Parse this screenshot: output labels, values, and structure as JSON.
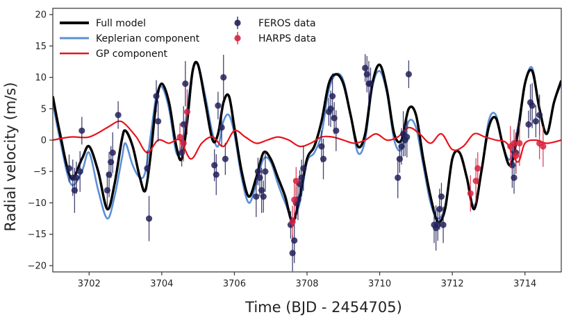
{
  "chart_data": {
    "type": "scatter",
    "xlabel": "Time (BJD - 2454705)",
    "ylabel": "Radial velocity (m/s)",
    "xlim": [
      3701,
      3715
    ],
    "ylim": [
      -21,
      21
    ],
    "xticks": [
      3702,
      3704,
      3706,
      3708,
      3710,
      3712,
      3714
    ],
    "yticks": [
      -20,
      -15,
      -10,
      -5,
      0,
      5,
      10,
      15,
      20
    ],
    "legend_position": "top-left",
    "colors": {
      "full_model": "#000000",
      "keplerian": "#5b8fd6",
      "gp": "#e8131b",
      "feros": "#23225a",
      "harps": "#d8223f"
    },
    "series": [
      {
        "name": "Full model",
        "kind": "line",
        "x": [
          3701.0,
          3701.2,
          3701.5,
          3701.8,
          3702.0,
          3702.25,
          3702.5,
          3702.7,
          3702.9,
          3703.0,
          3703.2,
          3703.4,
          3703.55,
          3703.7,
          3703.85,
          3704.0,
          3704.2,
          3704.4,
          3704.55,
          3704.7,
          3704.85,
          3705.0,
          3705.2,
          3705.4,
          3705.55,
          3705.7,
          3705.85,
          3706.0,
          3706.2,
          3706.4,
          3706.6,
          3706.8,
          3707.0,
          3707.2,
          3707.4,
          3707.6,
          3707.8,
          3708.0,
          3708.2,
          3708.4,
          3708.6,
          3708.8,
          3709.0,
          3709.2,
          3709.4,
          3709.6,
          3709.8,
          3710.0,
          3710.2,
          3710.4,
          3710.6,
          3710.8,
          3711.0,
          3711.2,
          3711.4,
          3711.6,
          3711.8,
          3712.0,
          3712.2,
          3712.4,
          3712.6,
          3712.8,
          3713.0,
          3713.2,
          3713.4,
          3713.6,
          3713.8,
          3714.0,
          3714.2,
          3714.4,
          3714.6,
          3714.8,
          3715.0
        ],
        "y": [
          7,
          1,
          -6,
          -3,
          -1,
          -5,
          -11,
          -7,
          0,
          1.5,
          -1,
          -6,
          -8,
          -2,
          6,
          9,
          6,
          -1,
          -3,
          3,
          11,
          12,
          6,
          0,
          1,
          6,
          7,
          2,
          -5,
          -9,
          -6,
          -2,
          -3,
          -6,
          -9,
          -13,
          -9,
          -3,
          -1,
          3,
          9,
          10.5,
          9,
          4,
          -1,
          1,
          9,
          12,
          8,
          1,
          0,
          5,
          4,
          -3,
          -9,
          -13,
          -11,
          -3,
          -2,
          -6,
          -11,
          -5,
          2,
          3.5,
          -1,
          -4,
          1,
          9,
          11,
          5,
          1,
          6,
          9.5
        ]
      },
      {
        "name": "Keplerian component",
        "kind": "line",
        "x": [
          3701.0,
          3701.2,
          3701.5,
          3701.8,
          3702.0,
          3702.25,
          3702.5,
          3702.7,
          3702.9,
          3703.0,
          3703.2,
          3703.4,
          3703.55,
          3703.7,
          3703.85,
          3704.0,
          3704.2,
          3704.4,
          3704.55,
          3704.7,
          3704.85,
          3705.0,
          3705.2,
          3705.4,
          3705.55,
          3705.7,
          3705.85,
          3706.0,
          3706.2,
          3706.4,
          3706.6,
          3706.8,
          3707.0,
          3707.2,
          3707.4,
          3707.6,
          3707.8,
          3708.0,
          3708.2,
          3708.4,
          3708.6,
          3708.8,
          3709.0,
          3709.2,
          3709.4,
          3709.6,
          3709.8,
          3710.0,
          3710.2,
          3710.4,
          3710.6,
          3710.8,
          3711.0,
          3711.2,
          3711.4,
          3711.6,
          3711.8,
          3712.0,
          3712.2,
          3712.4,
          3712.6,
          3712.8,
          3713.0,
          3713.2,
          3713.4,
          3713.6,
          3713.8,
          3714.0,
          3714.2,
          3714.4,
          3714.6,
          3714.8,
          3715.0
        ],
        "y": [
          6,
          0,
          -7,
          -5,
          -2,
          -8,
          -12.5,
          -9,
          -3,
          -0.5,
          -4,
          -6,
          -5,
          1,
          7,
          8.5,
          5,
          -2,
          -1,
          5,
          11,
          12,
          7,
          1,
          -1,
          3,
          4,
          1,
          -6,
          -10,
          -7,
          -3,
          -3.5,
          -7,
          -10,
          -12.5,
          -10,
          -3.5,
          -2,
          1,
          8,
          10.5,
          9.5,
          4,
          -2,
          0,
          8.5,
          11,
          7.5,
          0,
          -1.5,
          3,
          2,
          -4,
          -10,
          -12.5,
          -10.5,
          -3,
          -2,
          -6,
          -10.5,
          -5,
          3,
          4,
          -1,
          -3,
          2,
          9,
          11.5,
          5,
          1,
          6,
          9
        ]
      },
      {
        "name": "GP component",
        "kind": "line",
        "x": [
          3701.0,
          3701.5,
          3702.0,
          3702.5,
          3702.8,
          3703.0,
          3703.3,
          3703.6,
          3703.9,
          3704.2,
          3704.5,
          3704.8,
          3705.1,
          3705.4,
          3705.7,
          3706.0,
          3706.3,
          3706.6,
          3706.9,
          3707.2,
          3707.5,
          3707.8,
          3708.1,
          3708.4,
          3708.7,
          3709.0,
          3709.3,
          3709.6,
          3709.9,
          3710.2,
          3710.5,
          3710.8,
          3711.1,
          3711.4,
          3711.7,
          3712.0,
          3712.3,
          3712.6,
          3712.9,
          3713.2,
          3713.5,
          3713.8,
          3714.0,
          3714.3,
          3714.6,
          3715.0
        ],
        "y": [
          0,
          0.5,
          0.5,
          2,
          3,
          2.5,
          0.5,
          -2,
          0,
          -0.5,
          0,
          -3,
          -0.5,
          0.5,
          -1,
          1.5,
          0.5,
          -0.5,
          0,
          0.5,
          0,
          -1,
          -0.5,
          0.5,
          0.5,
          0,
          -0.5,
          0,
          1,
          0,
          0.5,
          2,
          1,
          -0.5,
          1,
          -1.5,
          -1,
          1,
          0.5,
          0,
          -0.5,
          -3.5,
          -0.5,
          0,
          -0.5,
          0
        ]
      },
      {
        "name": "FEROS data",
        "kind": "points",
        "x": [
          3701.45,
          3701.55,
          3701.6,
          3701.65,
          3701.75,
          3701.8,
          3702.5,
          3702.55,
          3702.6,
          3702.65,
          3702.8,
          3703.6,
          3703.65,
          3703.85,
          3703.9,
          3704.55,
          3704.6,
          3704.65,
          3705.45,
          3705.5,
          3705.55,
          3705.65,
          3705.7,
          3705.75,
          3706.6,
          3706.65,
          3706.7,
          3706.75,
          3706.8,
          3706.85,
          3707.55,
          3707.6,
          3707.65,
          3707.7,
          3707.75,
          3707.8,
          3707.85,
          3707.9,
          3708.4,
          3708.45,
          3708.6,
          3708.65,
          3708.7,
          3708.75,
          3708.8,
          3709.6,
          3709.65,
          3709.7,
          3709.75,
          3710.5,
          3710.55,
          3710.6,
          3710.65,
          3710.7,
          3710.75,
          3710.8,
          3711.5,
          3711.55,
          3711.6,
          3711.65,
          3711.7,
          3711.75,
          3713.65,
          3713.7,
          3713.75,
          3714.1,
          3714.15,
          3714.2,
          3714.3,
          3714.4
        ],
        "y": [
          -4.5,
          -6,
          -8,
          -6,
          -5,
          1.5,
          -8,
          -5.5,
          -3.5,
          -2,
          4,
          -4.5,
          -12.5,
          7,
          3,
          -2,
          2.5,
          9,
          -4,
          -5.5,
          5.5,
          2,
          10,
          -3,
          -9,
          -5,
          -6,
          -8,
          -9,
          -5,
          -13.5,
          -18,
          -16,
          -10,
          -9.5,
          -7,
          -6,
          -4.5,
          -1,
          -3,
          4.5,
          5,
          7,
          3.5,
          1.5,
          11.5,
          10.5,
          9,
          9,
          -6,
          -3,
          -1,
          1,
          0,
          0.5,
          10.5,
          -13.5,
          -14,
          -13.5,
          -11,
          -9,
          -13.5,
          -4,
          -6,
          -2,
          2.5,
          6,
          5.5,
          3,
          4
        ]
      },
      {
        "name": "HARPS data",
        "kind": "points",
        "x": [
          3704.5,
          3704.6,
          3704.7,
          3707.6,
          3707.65,
          3707.7,
          3712.5,
          3712.65,
          3712.7,
          3713.6,
          3713.7,
          3713.75,
          3713.85,
          3714.4,
          3714.5
        ],
        "y": [
          0.5,
          -0.5,
          4.5,
          -13,
          -9.5,
          -6.5,
          -8.5,
          -6.5,
          -4.5,
          -1,
          -0.5,
          -2.5,
          -0.5,
          -0.5,
          -1
        ]
      }
    ]
  }
}
